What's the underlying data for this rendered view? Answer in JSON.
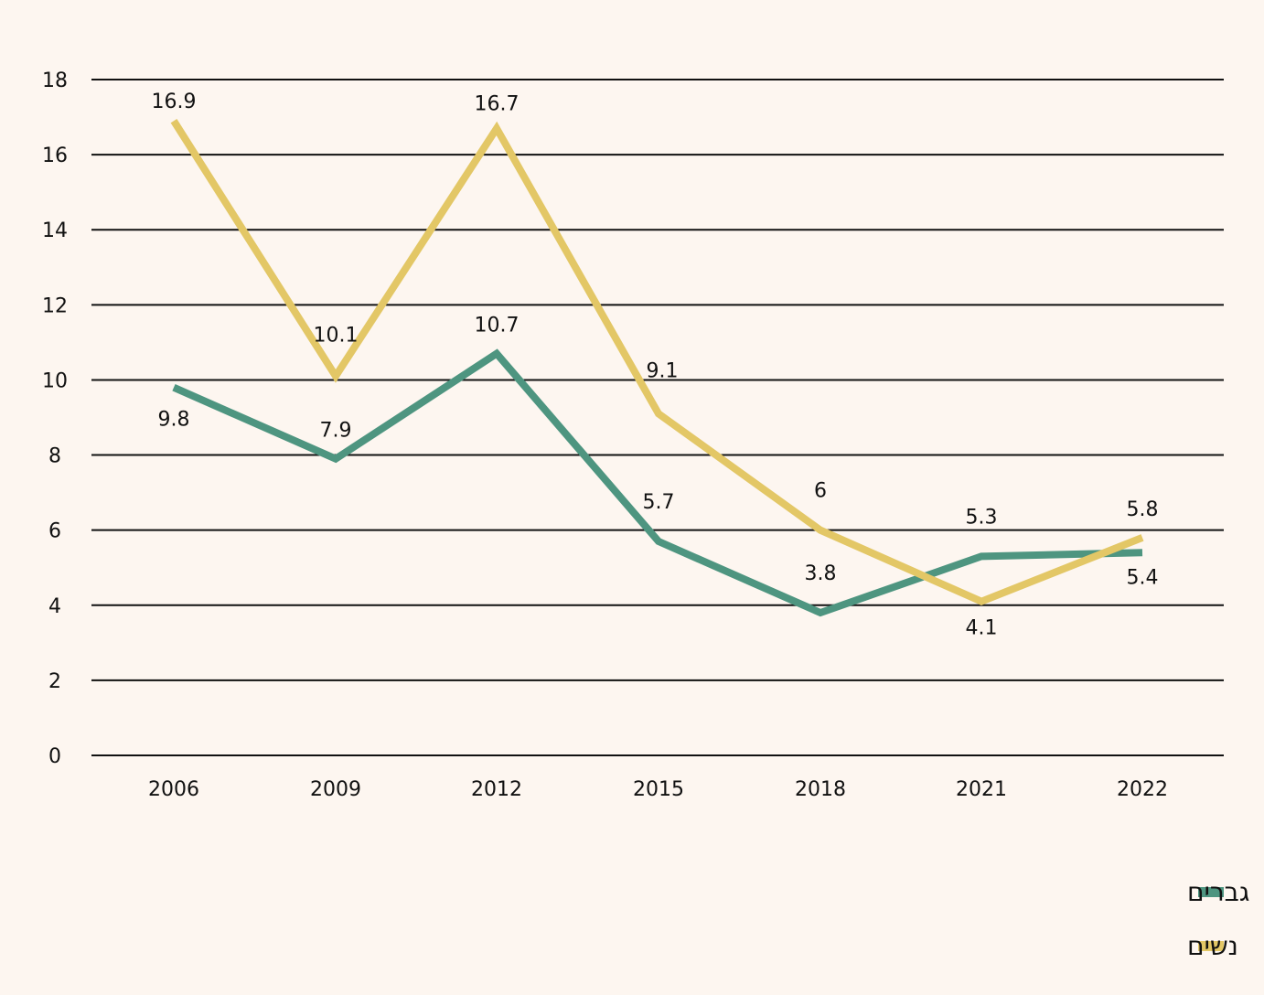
{
  "chart_data": {
    "type": "line",
    "title": "",
    "xlabel": "",
    "ylabel": "",
    "categories": [
      "2006",
      "2009",
      "2012",
      "2015",
      "2018",
      "2021",
      "2022"
    ],
    "ylim": [
      0,
      18
    ],
    "yticks": [
      0,
      2,
      4,
      6,
      8,
      10,
      12,
      14,
      16,
      18
    ],
    "grid": "horizontal",
    "legend_position": "bottom-right",
    "series": [
      {
        "name": "גברים",
        "color": "#4e9580",
        "values": [
          9.8,
          7.9,
          10.7,
          5.7,
          3.8,
          5.3,
          5.4
        ],
        "labels": [
          "9.8",
          "7.9",
          "10.7",
          "5.7",
          "3.8",
          "5.3",
          "5.4"
        ]
      },
      {
        "name": "נשים",
        "color": "#e3c766",
        "values": [
          16.9,
          10.1,
          16.7,
          9.1,
          6,
          4.1,
          5.8
        ],
        "labels": [
          "16.9",
          "10.1",
          "16.7",
          "9.1",
          "6",
          "4.1",
          "5.8"
        ]
      }
    ]
  }
}
